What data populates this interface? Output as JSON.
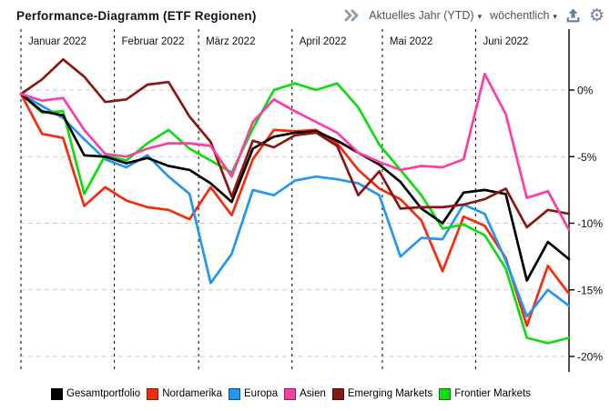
{
  "header": {
    "title": "Performance-Diagramm (ETF Regionen)",
    "period_dropdown": {
      "value": "Aktuelles Jahr (YTD)",
      "caret": "▾"
    },
    "interval_dropdown": {
      "value": "wöchentlich",
      "caret": "▾"
    },
    "icons": {
      "expand": "double-chevron-right",
      "export": "upload-tray",
      "settings": "gear",
      "icon_color": "#5e80a0",
      "chevron_color": "#8c9fb3"
    }
  },
  "chart_data": {
    "type": "line",
    "title": "Performance-Diagramm (ETF Regionen)",
    "x_axis": {
      "unit": "week",
      "month_labels": [
        "Januar 2022",
        "Februar 2022",
        "März 2022",
        "April 2022",
        "Mai 2022",
        "Juni 2022"
      ],
      "month_day_offsets": [
        0,
        31,
        59,
        90,
        120,
        151
      ],
      "total_days": 182,
      "points_per_series": 27
    },
    "y_axis": {
      "unit": "%",
      "tick_labels": [
        "0%",
        "-5%",
        "-10%",
        "-15%",
        "-20%"
      ],
      "tick_values": [
        0,
        -5,
        -10,
        -15,
        -20
      ],
      "ylim": [
        -21.5,
        3.0
      ],
      "grid": true
    },
    "legend_position": "bottom",
    "series": [
      {
        "name": "Gesamtportfolio",
        "color": "#000000",
        "values": [
          -0.3,
          -1.6,
          -1.9,
          -4.9,
          -5.0,
          -5.5,
          -5.1,
          -5.7,
          -6.0,
          -7.0,
          -8.4,
          -4.4,
          -3.5,
          -3.2,
          -3.1,
          -3.8,
          -4.7,
          -5.6,
          -6.9,
          -8.9,
          -10.0,
          -7.7,
          -7.5,
          -7.8,
          -14.3,
          -11.4,
          -12.7
        ]
      },
      {
        "name": "Nordamerika",
        "color": "#f92a0a",
        "values": [
          -0.3,
          -3.3,
          -3.6,
          -8.7,
          -7.3,
          -8.3,
          -8.8,
          -9.0,
          -9.7,
          -7.3,
          -9.4,
          -5.2,
          -3.0,
          -3.1,
          -3.0,
          -4.0,
          -6.0,
          -7.4,
          -8.2,
          -9.8,
          -13.6,
          -9.5,
          -10.2,
          -12.6,
          -17.7,
          -13.2,
          -15.3
        ]
      },
      {
        "name": "Europa",
        "color": "#2196f3",
        "values": [
          -0.3,
          -1.2,
          -2.1,
          -3.7,
          -5.2,
          -5.8,
          -4.9,
          -6.5,
          -7.8,
          -14.5,
          -12.3,
          -7.5,
          -7.9,
          -6.8,
          -6.5,
          -6.7,
          -7.0,
          -7.9,
          -12.5,
          -11.1,
          -11.2,
          -8.6,
          -9.3,
          -12.8,
          -17.0,
          -15.0,
          -16.2
        ]
      },
      {
        "name": "Asien",
        "color": "#fc3da5",
        "values": [
          -0.3,
          -0.8,
          -0.6,
          -3.0,
          -4.8,
          -5.0,
          -4.4,
          -4.0,
          -4.0,
          -4.2,
          -6.5,
          -2.4,
          -0.7,
          -1.6,
          -2.4,
          -3.2,
          -4.7,
          -5.4,
          -6.0,
          -5.7,
          -5.8,
          -5.2,
          1.2,
          -1.8,
          -8.1,
          -7.6,
          -10.5
        ]
      },
      {
        "name": "Emerging Markets",
        "color": "#8b1510",
        "values": [
          -0.3,
          0.8,
          2.3,
          1.0,
          -0.9,
          -0.7,
          0.4,
          0.6,
          -2.0,
          -3.9,
          -8.0,
          -3.8,
          -4.3,
          -3.4,
          -3.2,
          -4.2,
          -7.9,
          -6.1,
          -8.9,
          -8.8,
          -8.8,
          -8.6,
          -8.2,
          -7.4,
          -10.3,
          -9.0,
          -9.3
        ]
      },
      {
        "name": "Frontier Markets",
        "color": "#0fdc0f",
        "values": [
          -0.3,
          -1.7,
          -1.6,
          -7.8,
          -4.9,
          -5.3,
          -4.0,
          -3.0,
          -4.4,
          -5.3,
          -6.2,
          -2.9,
          0.0,
          0.5,
          0.0,
          0.5,
          -1.3,
          -4.1,
          -6.0,
          -7.9,
          -10.4,
          -10.1,
          -10.9,
          -13.4,
          -18.6,
          -19.0,
          -18.6
        ]
      }
    ]
  }
}
